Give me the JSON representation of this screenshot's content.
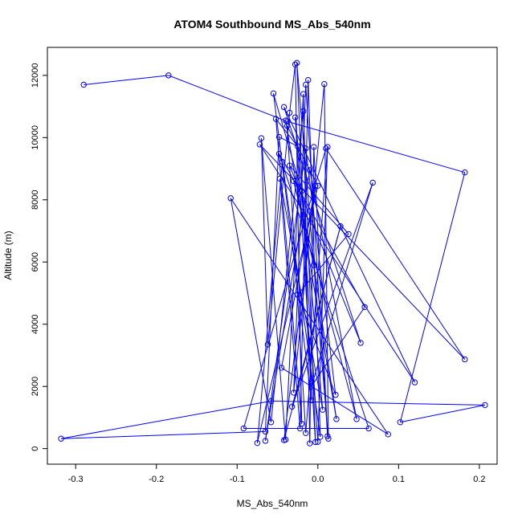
{
  "chart_data": {
    "type": "line",
    "title": "ATOM4 Southbound MS_Abs_540nm",
    "xlabel": "MS_Abs_540nm",
    "ylabel": "Altitude (m)",
    "xlim": [
      -0.335,
      0.222
    ],
    "ylim": [
      -500,
      12900
    ],
    "xticks": [
      -0.3,
      -0.2,
      -0.1,
      0.0,
      0.1,
      0.2
    ],
    "xtick_labels": [
      "-0.3",
      "-0.2",
      "-0.1",
      "0.0",
      "0.1",
      "0.2"
    ],
    "yticks": [
      0,
      2000,
      4000,
      6000,
      8000,
      10000,
      12000
    ],
    "ytick_labels": [
      "0",
      "2000",
      "4000",
      "6000",
      "8000",
      "10000",
      "12000"
    ],
    "grid": false,
    "legend": "none",
    "series": [
      {
        "color": "#0000ff",
        "marker": "open-circle",
        "points": [
          [
            -0.29,
            11700
          ],
          [
            -0.185,
            12000
          ],
          [
            -0.038,
            10520
          ],
          [
            0.182,
            8880
          ],
          [
            0.102,
            850
          ],
          [
            0.207,
            1400
          ],
          [
            -0.058,
            1530
          ],
          [
            -0.318,
            320
          ],
          [
            -0.065,
            550
          ],
          [
            -0.048,
            10020
          ],
          [
            -0.025,
            9720
          ],
          [
            -0.052,
            10600
          ],
          [
            -0.02,
            800
          ],
          [
            -0.028,
            12350
          ],
          [
            -0.035,
            10800
          ],
          [
            -0.062,
            3350
          ],
          [
            -0.07,
            9980
          ],
          [
            -0.04,
            290
          ],
          [
            -0.018,
            11400
          ],
          [
            -0.01,
            170
          ],
          [
            -0.005,
            9700
          ],
          [
            0.012,
            400
          ],
          [
            -0.015,
            11700
          ],
          [
            -0.03,
            1800
          ],
          [
            0.008,
            11720
          ],
          [
            0.013,
            320
          ],
          [
            -0.026,
            12400
          ],
          [
            -0.008,
            1550
          ],
          [
            -0.055,
            11420
          ],
          [
            -0.02,
            8280
          ],
          [
            0.0,
            220
          ],
          [
            0.012,
            9700
          ],
          [
            -0.015,
            500
          ],
          [
            -0.038,
            10380
          ],
          [
            0.0,
            8450
          ],
          [
            -0.075,
            180
          ],
          [
            -0.044,
            9220
          ],
          [
            0.003,
            380
          ],
          [
            -0.012,
            11850
          ],
          [
            -0.022,
            650
          ],
          [
            -0.047,
            8680
          ],
          [
            0.006,
            1250
          ],
          [
            -0.028,
            10650
          ],
          [
            -0.003,
            210
          ],
          [
            -0.018,
            10850
          ],
          [
            -0.058,
            850
          ],
          [
            -0.108,
            8050
          ],
          [
            0.087,
            460
          ],
          [
            -0.045,
            2600
          ],
          [
            -0.003,
            8450
          ],
          [
            -0.042,
            270
          ],
          [
            0.028,
            7150
          ],
          [
            -0.032,
            1350
          ],
          [
            0.068,
            8550
          ],
          [
            -0.008,
            2000
          ],
          [
            0.058,
            4550
          ],
          [
            -0.048,
            9480
          ],
          [
            0.063,
            650
          ],
          [
            -0.092,
            650
          ],
          [
            0.01,
            9650
          ],
          [
            0.182,
            2870
          ],
          [
            -0.072,
            9780
          ],
          [
            0.12,
            2130
          ],
          [
            -0.042,
            10980
          ],
          [
            0.053,
            3400
          ],
          [
            -0.035,
            9100
          ],
          [
            0.038,
            6900
          ],
          [
            -0.025,
            4950
          ],
          [
            0.022,
            1730
          ],
          [
            -0.015,
            9650
          ],
          [
            -0.065,
            250
          ],
          [
            -0.01,
            8950
          ],
          [
            0.048,
            950
          ],
          [
            -0.03,
            8600
          ],
          [
            -0.005,
            5900
          ],
          [
            0.023,
            950
          ],
          [
            -0.04,
            10550
          ]
        ]
      }
    ]
  }
}
